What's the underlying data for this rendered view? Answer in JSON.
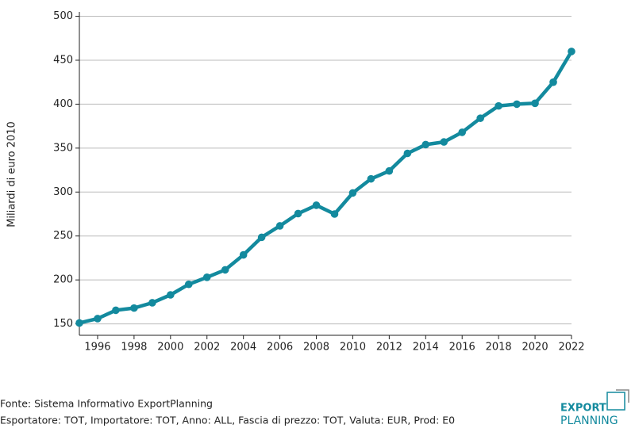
{
  "chart_data": {
    "type": "line",
    "y_label": "Miliardi di euro 2010",
    "x": [
      1995,
      1996,
      1997,
      1998,
      1999,
      2000,
      2001,
      2002,
      2003,
      2004,
      2005,
      2006,
      2007,
      2008,
      2009,
      2010,
      2011,
      2012,
      2013,
      2014,
      2015,
      2016,
      2017,
      2018,
      2019,
      2020,
      2021,
      2022
    ],
    "series": [
      {
        "name": "Export",
        "color": "#138a9e",
        "values": [
          151,
          156,
          165.5,
          168,
          174,
          183,
          195,
          203,
          211.5,
          228.5,
          248.5,
          261.5,
          275.5,
          285,
          275,
          299,
          315,
          324,
          344,
          354,
          357,
          368,
          384,
          398,
          400,
          401,
          425,
          460
        ]
      }
    ],
    "xlim": [
      1995,
      2022
    ],
    "xticks": [
      1996,
      1998,
      2000,
      2002,
      2004,
      2006,
      2008,
      2010,
      2012,
      2014,
      2016,
      2018,
      2020,
      2022
    ],
    "ylim": [
      137,
      505
    ],
    "yticks": [
      150,
      200,
      250,
      300,
      350,
      400,
      450,
      500
    ],
    "grid": true
  },
  "footer": {
    "source": "Fonte: Sistema Informativo ExportPlanning",
    "filters": "Esportatore: TOT, Importatore: TOT, Anno: ALL, Fascia di prezzo: TOT, Valuta: EUR, Prod: E0"
  },
  "logo": {
    "line1": "EXPORT",
    "line2": "PLANNING"
  }
}
